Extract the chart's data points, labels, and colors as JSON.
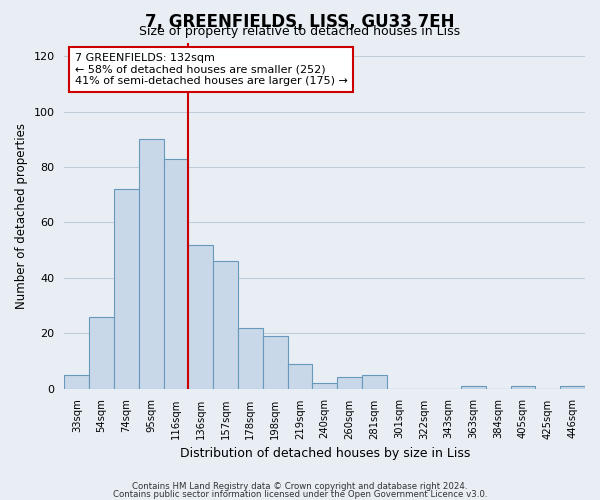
{
  "title": "7, GREENFIELDS, LISS, GU33 7EH",
  "subtitle": "Size of property relative to detached houses in Liss",
  "xlabel": "Distribution of detached houses by size in Liss",
  "ylabel": "Number of detached properties",
  "bar_labels": [
    "33sqm",
    "54sqm",
    "74sqm",
    "95sqm",
    "116sqm",
    "136sqm",
    "157sqm",
    "178sqm",
    "198sqm",
    "219sqm",
    "240sqm",
    "260sqm",
    "281sqm",
    "301sqm",
    "322sqm",
    "343sqm",
    "363sqm",
    "384sqm",
    "405sqm",
    "425sqm",
    "446sqm"
  ],
  "bar_values": [
    5,
    26,
    72,
    90,
    83,
    52,
    46,
    22,
    19,
    9,
    2,
    4,
    5,
    0,
    0,
    0,
    1,
    0,
    1,
    0,
    1
  ],
  "bar_color": "#c8d8e8",
  "bar_edge_color": "#6699bb",
  "ylim": [
    0,
    125
  ],
  "yticks": [
    0,
    20,
    40,
    60,
    80,
    100,
    120
  ],
  "vline_index": 5,
  "vline_color": "#cc0000",
  "annotation_title": "7 GREENFIELDS: 132sqm",
  "annotation_line1": "← 58% of detached houses are smaller (252)",
  "annotation_line2": "41% of semi-detached houses are larger (175) →",
  "footer1": "Contains HM Land Registry data © Crown copyright and database right 2024.",
  "footer2": "Contains public sector information licensed under the Open Government Licence v3.0.",
  "background_color": "#e8eef4",
  "plot_bg_color": "#e8eef4",
  "grid_color": "#c0ccd8"
}
